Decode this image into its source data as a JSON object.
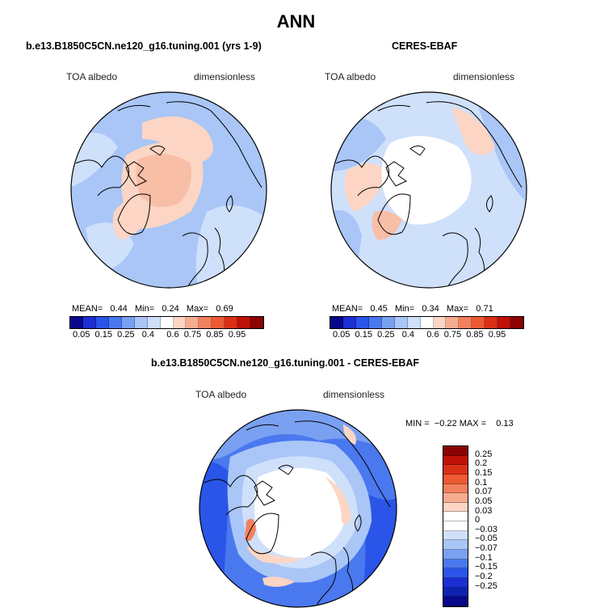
{
  "title": "ANN",
  "top_left": {
    "case_title": "b.e13.B1850C5CN.ne120_g16.tuning.001 (yrs 1-9)",
    "variable": "TOA albedo",
    "units": "dimensionless",
    "stats": {
      "mean_label": "MEAN=",
      "mean": "0.44",
      "min_label": "Min=",
      "min": "0.24",
      "max_label": "Max=",
      "max": "0.69"
    }
  },
  "top_right": {
    "case_title": "CERES-EBAF",
    "variable": "TOA albedo",
    "units": "dimensionless",
    "stats": {
      "mean_label": "MEAN=",
      "mean": "0.45",
      "min_label": "Min=",
      "min": "0.34",
      "max_label": "Max=",
      "max": "0.71"
    }
  },
  "abs_colorbar": {
    "colors": [
      "#08088a",
      "#1c2fd2",
      "#2a55e8",
      "#4a78ef",
      "#7aa0f2",
      "#a9c6f7",
      "#cfe0fb",
      "#ffffff",
      "#fcd5c4",
      "#f6ac8f",
      "#f3805e",
      "#ed5a33",
      "#da3017",
      "#c01108",
      "#8c0303"
    ],
    "ticks": [
      "0.05",
      "0.15",
      "0.25",
      "0.4",
      "0.6",
      "0.75",
      "0.85",
      "0.95"
    ]
  },
  "diff": {
    "title": "b.e13.B1850C5CN.ne120_g16.tuning.001 - CERES-EBAF",
    "variable": "TOA albedo",
    "units": "dimensionless",
    "min_label": "MIN =",
    "min": "−0.22",
    "max_label": "MAX =",
    "max": "0.13",
    "colorbar": {
      "colors": [
        "#8c0303",
        "#c01108",
        "#da3017",
        "#ed5a33",
        "#f3805e",
        "#f6ac8f",
        "#fcd5c4",
        "#ffffff",
        "#ffffff",
        "#cfe0fb",
        "#a9c6f7",
        "#7aa0f2",
        "#4a78ef",
        "#2a55e8",
        "#1c2fd2",
        "#0e22b0",
        "#08088a"
      ],
      "labels": [
        "0.25",
        "0.2",
        "0.15",
        "0.1",
        "0.07",
        "0.05",
        "0.03",
        "0",
        "−0.03",
        "−0.05",
        "−0.07",
        "−0.1",
        "−0.15",
        "−0.2",
        "−0.25"
      ]
    }
  }
}
